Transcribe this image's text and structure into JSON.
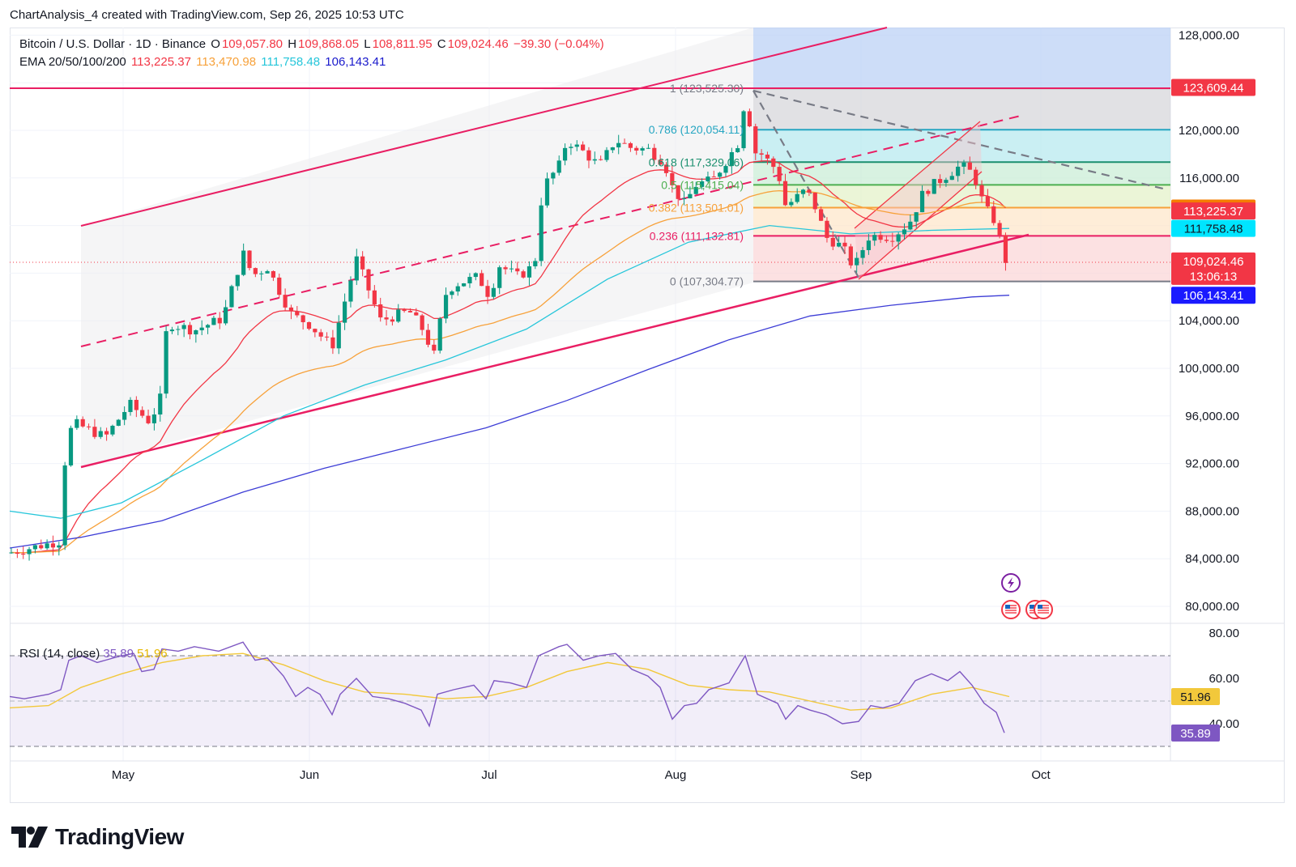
{
  "attribution": "ChartAnalysis_4 created with TradingView.com, Sep 26, 2025 10:53 UTC",
  "legend": {
    "symbol": "Bitcoin / U.S. Dollar · 1D · Binance",
    "open_label": "O",
    "open": "109,057.80",
    "high_label": "H",
    "high": "109,868.05",
    "low_label": "L",
    "low": "108,811.95",
    "close_label": "C",
    "close": "109,024.46",
    "change": "−39.30 (−0.04%)",
    "ema_label": "EMA 20/50/100/200",
    "ema20": "113,225.37",
    "ema50": "113,470.98",
    "ema100": "111,758.48",
    "ema200": "106,143.41"
  },
  "rsi_legend": {
    "label": "RSI (14, close)",
    "rsi": "35.89",
    "rsi_ma": "51.96"
  },
  "colors": {
    "up": "#089981",
    "down": "#f23645",
    "ema20": "#f23645",
    "ema50": "#f7a13a",
    "ema100": "#26c6da",
    "ema200": "#3d3dd6",
    "channel": "#e91e63",
    "rsi": "#7e57c2",
    "rsi_ma": "#f2c83b"
  },
  "branding": {
    "logo_text": "TradingView"
  },
  "chart_data": {
    "type": "candlestick",
    "x_ticks": [
      "May",
      "Jun",
      "Jul",
      "Aug",
      "Sep",
      "Oct"
    ],
    "y_ticks": [
      "128,000.00",
      "120,000.00",
      "116,000.00",
      "104,000.00",
      "100,000.00",
      "96,000.00",
      "92,000.00",
      "88,000.00",
      "84,000.00",
      "80,000.00"
    ],
    "ylim": [
      78000,
      128500
    ],
    "price_tags": [
      {
        "text": "123,609.44",
        "value": 123609.44,
        "color": "#f23645"
      },
      {
        "text": "113,470.98",
        "value": 113470.98,
        "color": "#f57c00"
      },
      {
        "text": "113,225.37",
        "value": 113225.37,
        "color": "#f23645"
      },
      {
        "text": "111,758.48",
        "value": 111758.48,
        "color": "#00e5ff",
        "text_color": "#131722"
      },
      {
        "text": "109,024.46",
        "sub": "13:06:13",
        "value": 109024.46,
        "color": "#f23645"
      },
      {
        "text": "106,143.41",
        "value": 106143.41,
        "color": "#1a1aff"
      }
    ],
    "fib_levels": [
      {
        "label": "1 (123,525.30)",
        "value": 123525.3
      },
      {
        "label": "0.786 (120,054.11)",
        "value": 120054.11
      },
      {
        "label": "0.618 (117,329.06)",
        "value": 117329.06
      },
      {
        "label": "0.5 (115,415.04)",
        "value": 115415.04
      },
      {
        "label": "0.382 (113,501.01)",
        "value": 113501.01
      },
      {
        "label": "0.236 (111,132.81)",
        "value": 111132.81
      },
      {
        "label": "0 (107,304.77)",
        "value": 107304.77
      }
    ],
    "rsi": {
      "y_ticks": [
        "80.00",
        "60.00",
        "40.00"
      ],
      "ylim": [
        28,
        81
      ],
      "bands": [
        30,
        70
      ],
      "tags": [
        {
          "text": "51.96",
          "value": 51.96,
          "color": "#f2c83b"
        },
        {
          "text": "35.89",
          "value": 35.89,
          "color": "#7e57c2"
        }
      ]
    }
  }
}
